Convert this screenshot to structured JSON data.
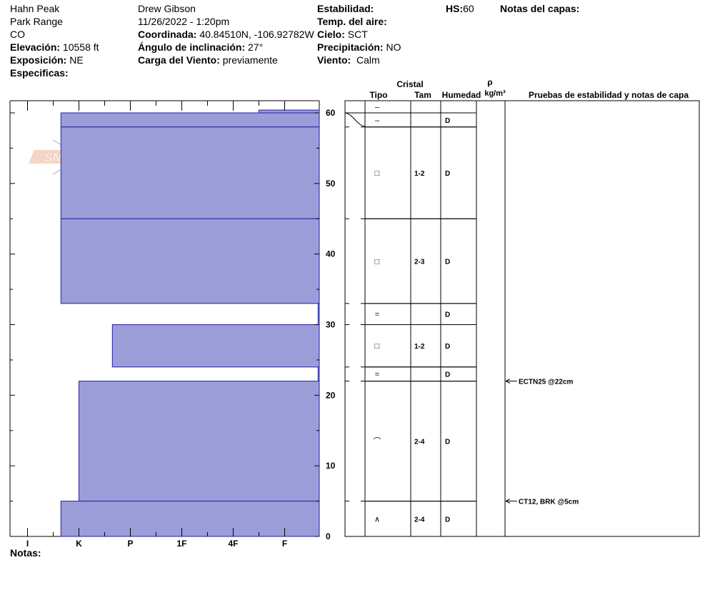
{
  "header": {
    "location": "Hahn Peak",
    "range": "Park Range",
    "state": "CO",
    "elevation_label": "Elevación:",
    "elevation_value": "10558 ft",
    "aspect_label": "Exposición:",
    "aspect_value": "NE",
    "specifics_label": "Especificas:",
    "observer": "Drew Gibson",
    "datetime": "11/26/2022 - 1:20pm",
    "coord_label": "Coordinada:",
    "coord_value": "40.84510N, -106.92782W",
    "slope_label": "Ángulo de inclinación:",
    "slope_value": "27°",
    "wind_load_label": "Carga del Viento:",
    "wind_load_value": "previamente",
    "stability_label": "Estabilidad:",
    "air_temp_label": "Temp. del aire:",
    "sky_label": "Cielo:",
    "sky_value": "SCT",
    "precip_label": "Precipitación:",
    "precip_value": "NO",
    "wind_label": "Viento:",
    "wind_value": "Calm",
    "hs_label": "HS:",
    "hs_value": "60",
    "layer_notes_label": "Notas del capas:"
  },
  "footer": {
    "notes_label": "Notas:"
  },
  "logo_text": "SNOW PILOT",
  "columns": {
    "crystal": "Cristal",
    "type": "Tipo",
    "size": "Tam",
    "moisture": "Humedad",
    "rho": "ρ",
    "density_unit": "kg/m³",
    "tests": "Pruebas de estabilidad y notas de capa"
  },
  "colors": {
    "hardness_fill": "#9c9cd8",
    "hardness_edge": "#2222aa"
  },
  "chart_data": {
    "type": "bar",
    "orientation": "horizontal",
    "x_categories": [
      "I",
      "K",
      "P",
      "1F",
      "4F",
      "F"
    ],
    "x_range": [
      "I",
      "F"
    ],
    "y_range": [
      0,
      60
    ],
    "y_ticks": [
      0,
      10,
      20,
      30,
      40,
      50,
      60
    ],
    "layers": [
      {
        "bottom": 60,
        "top": 60.4,
        "hardness": 4.5,
        "grain": "–",
        "size": "",
        "moisture": ""
      },
      {
        "bottom": 58,
        "top": 60,
        "hardness": 0.65,
        "grain": "–",
        "size": "",
        "moisture": "D"
      },
      {
        "bottom": 45,
        "top": 58,
        "hardness": 0.65,
        "grain": "□",
        "size": "1-2",
        "moisture": "D"
      },
      {
        "bottom": 33,
        "top": 45,
        "hardness": 0.65,
        "grain": "□",
        "size": "2-3",
        "moisture": "D"
      },
      {
        "bottom": 30,
        "top": 33,
        "hardness": 5.65,
        "grain": "=",
        "size": "",
        "moisture": "D"
      },
      {
        "bottom": 24,
        "top": 30,
        "hardness": 1.65,
        "grain": "□",
        "size": "1-2",
        "moisture": "D"
      },
      {
        "bottom": 22,
        "top": 24,
        "hardness": 5.65,
        "grain": "=",
        "size": "",
        "moisture": "D"
      },
      {
        "bottom": 5,
        "top": 22,
        "hardness": 1.0,
        "grain": "⌒",
        "size": "2-4",
        "moisture": "D"
      },
      {
        "bottom": 0,
        "top": 5,
        "hardness": 0.65,
        "grain": "∧",
        "size": "2-4",
        "moisture": "D"
      }
    ],
    "tests": [
      {
        "height": 22,
        "label": "ECTN25 @22cm"
      },
      {
        "height": 5,
        "label": "CT12, BRK @5cm"
      }
    ]
  }
}
